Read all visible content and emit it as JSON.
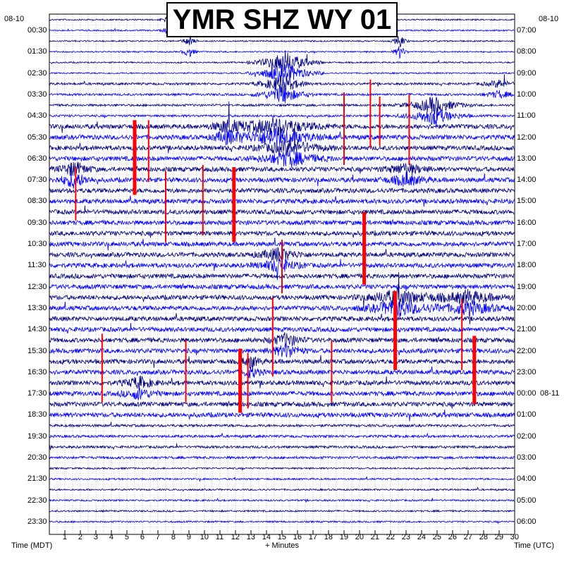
{
  "chart_data": {
    "type": "helicorder",
    "title": "YMR SHZ WY 01",
    "left_date": "08-10",
    "right_date": "08-10",
    "next_day_date": "08-11",
    "xlabel": "+ Minutes",
    "left_axis_label": "Time (MDT)",
    "right_axis_label": "Time (UTC)",
    "x_ticks": [
      "1",
      "2",
      "3",
      "4",
      "5",
      "6",
      "7",
      "8",
      "9",
      "10",
      "11",
      "12",
      "13",
      "14",
      "15",
      "16",
      "17",
      "18",
      "19",
      "20",
      "21",
      "22",
      "23",
      "24",
      "25",
      "26",
      "27",
      "28",
      "29",
      "30"
    ],
    "xlim": [
      0,
      30
    ],
    "left_times": [
      "00:30",
      "01:30",
      "02:30",
      "03:30",
      "04:30",
      "05:30",
      "06:30",
      "07:30",
      "08:30",
      "09:30",
      "10:30",
      "11:30",
      "12:30",
      "13:30",
      "14:30",
      "15:30",
      "16:30",
      "17:30",
      "18:30",
      "19:30",
      "20:30",
      "21:30",
      "22:30",
      "23:30"
    ],
    "right_times": [
      "07:00",
      "08:00",
      "09:00",
      "10:00",
      "11:00",
      "12:00",
      "13:00",
      "14:00",
      "15:00",
      "16:00",
      "17:00",
      "18:00",
      "19:00",
      "20:00",
      "21:00",
      "22:00",
      "23:00",
      "00:00",
      "01:00",
      "02:00",
      "03:00",
      "04:00",
      "05:00",
      "06:00"
    ],
    "trace_colors": [
      "#000080",
      "#0000ff"
    ],
    "clip_color": "#ff0000",
    "lines_per_hour": 2,
    "events": [
      {
        "hour": 0,
        "minute": 7.5,
        "amp": 0.25,
        "dur": 0.5
      },
      {
        "hour": 1,
        "minute": 9.0,
        "amp": 0.6,
        "dur": 0.6
      },
      {
        "hour": 1,
        "minute": 22.6,
        "amp": 0.7,
        "dur": 0.6
      },
      {
        "hour": 2,
        "minute": 15.2,
        "amp": 1.2,
        "dur": 2.5
      },
      {
        "hour": 3,
        "minute": 15.0,
        "amp": 1.0,
        "dur": 2.0
      },
      {
        "hour": 3,
        "minute": 29.0,
        "amp": 0.4,
        "dur": 1.5
      },
      {
        "hour": 4,
        "minute": 24.8,
        "amp": 0.9,
        "dur": 2.5
      },
      {
        "hour": 5,
        "minute": 14.5,
        "amp": 0.9,
        "dur": 4.0
      },
      {
        "hour": 5,
        "minute": 11.5,
        "amp": 0.6,
        "dur": 1.5
      },
      {
        "hour": 6,
        "minute": 15.5,
        "amp": 0.8,
        "dur": 3.0
      },
      {
        "hour": 7,
        "minute": 1.6,
        "amp": 0.8,
        "dur": 1.5
      },
      {
        "hour": 7,
        "minute": 23.0,
        "amp": 0.6,
        "dur": 2.0
      },
      {
        "hour": 11,
        "minute": 14.8,
        "amp": 0.7,
        "dur": 2.0
      },
      {
        "hour": 13,
        "minute": 22.5,
        "amp": 0.9,
        "dur": 3.0
      },
      {
        "hour": 13,
        "minute": 27.0,
        "amp": 0.7,
        "dur": 3.0
      },
      {
        "hour": 15,
        "minute": 15.3,
        "amp": 0.7,
        "dur": 1.5
      },
      {
        "hour": 16,
        "minute": 13.0,
        "amp": 0.6,
        "dur": 1.0
      },
      {
        "hour": 17,
        "minute": 5.8,
        "amp": 0.6,
        "dur": 1.5
      }
    ],
    "clips": [
      {
        "minute": 5.5,
        "top_hour": 4.7,
        "bottom_hour": 8.2,
        "thick": true
      },
      {
        "minute": 6.4,
        "top_hour": 4.7,
        "bottom_hour": 7.6,
        "thick": false
      },
      {
        "minute": 1.7,
        "top_hour": 6.9,
        "bottom_hour": 9.4,
        "thick": false
      },
      {
        "minute": 7.5,
        "top_hour": 7.1,
        "bottom_hour": 10.4,
        "thick": false
      },
      {
        "minute": 9.9,
        "top_hour": 6.8,
        "bottom_hour": 10.1,
        "thick": false
      },
      {
        "minute": 11.9,
        "top_hour": 6.9,
        "bottom_hour": 10.4,
        "thick": true
      },
      {
        "minute": 19.0,
        "top_hour": 3.4,
        "bottom_hour": 6.8,
        "thick": false
      },
      {
        "minute": 20.7,
        "top_hour": 2.8,
        "bottom_hour": 6.0,
        "thick": false
      },
      {
        "minute": 21.3,
        "top_hour": 3.6,
        "bottom_hour": 5.9,
        "thick": false
      },
      {
        "minute": 23.2,
        "top_hour": 3.5,
        "bottom_hour": 6.8,
        "thick": false
      },
      {
        "minute": 20.3,
        "top_hour": 9.0,
        "bottom_hour": 12.4,
        "thick": true
      },
      {
        "minute": 15.0,
        "top_hour": 10.3,
        "bottom_hour": 12.8,
        "thick": false
      },
      {
        "minute": 14.4,
        "top_hour": 13.0,
        "bottom_hour": 16.7,
        "thick": false
      },
      {
        "minute": 22.3,
        "top_hour": 12.7,
        "bottom_hour": 16.4,
        "thick": true
      },
      {
        "minute": 26.6,
        "top_hour": 13.1,
        "bottom_hour": 16.4,
        "thick": false
      },
      {
        "minute": 27.4,
        "top_hour": 14.8,
        "bottom_hour": 18.0,
        "thick": true
      },
      {
        "minute": 3.4,
        "top_hour": 14.7,
        "bottom_hour": 17.9,
        "thick": false
      },
      {
        "minute": 8.8,
        "top_hour": 15.0,
        "bottom_hour": 17.9,
        "thick": false
      },
      {
        "minute": 12.3,
        "top_hour": 15.4,
        "bottom_hour": 18.4,
        "thick": true
      },
      {
        "minute": 12.8,
        "top_hour": 15.6,
        "bottom_hour": 18.2,
        "thick": false
      },
      {
        "minute": 18.2,
        "top_hour": 15.0,
        "bottom_hour": 17.9,
        "thick": false
      }
    ]
  }
}
